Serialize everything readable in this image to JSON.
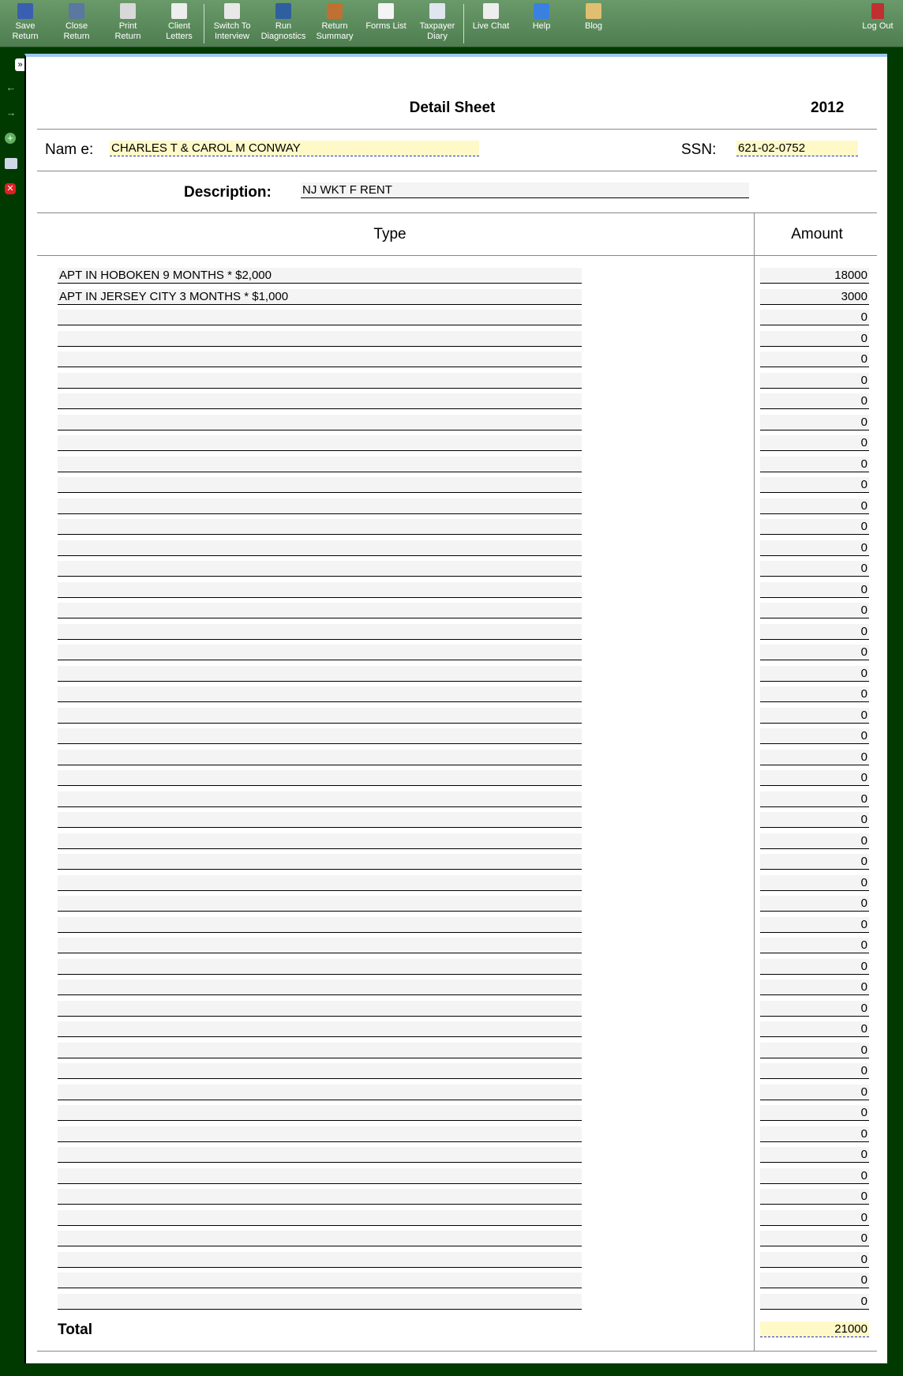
{
  "toolbar": {
    "items": [
      {
        "label1": "Save",
        "label2": "Return",
        "icon": "save-icon",
        "color": "#3a5fb0"
      },
      {
        "label1": "Close",
        "label2": "Return",
        "icon": "close-return-icon",
        "color": "#5a78a0"
      },
      {
        "label1": "Print",
        "label2": "Return",
        "icon": "print-icon",
        "color": "#d8d8d8"
      },
      {
        "label1": "Client",
        "label2": "Letters",
        "icon": "envelope-icon",
        "color": "#eeeeee"
      },
      {
        "label1": "Switch To",
        "label2": "Interview",
        "icon": "interview-icon",
        "color": "#e8e8e8"
      },
      {
        "label1": "Run",
        "label2": "Diagnostics",
        "icon": "diagnostics-icon",
        "color": "#2f5f9f"
      },
      {
        "label1": "Return",
        "label2": "Summary",
        "icon": "clipboard-icon",
        "color": "#c07030"
      },
      {
        "label1": "Forms List",
        "label2": "",
        "icon": "forms-list-icon",
        "color": "#f4f4f4"
      },
      {
        "label1": "Taxpayer",
        "label2": "Diary",
        "icon": "diary-icon",
        "color": "#e0e6f0"
      },
      {
        "label1": "Live Chat",
        "label2": "",
        "icon": "chat-icon",
        "color": "#eeeeee"
      },
      {
        "label1": "Help",
        "label2": "",
        "icon": "help-icon",
        "color": "#3a80e0"
      },
      {
        "label1": "Blog",
        "label2": "",
        "icon": "blog-icon",
        "color": "#e0c070"
      }
    ],
    "logout": "Log Out"
  },
  "sheet": {
    "title": "Detail Sheet",
    "year": "2012",
    "name_label": "Nam e:",
    "name": "CHARLES T & CAROL M CONWAY",
    "ssn_label": "SSN:",
    "ssn": "621-02-0752",
    "desc_label": "Description:",
    "description": "NJ WKT F RENT",
    "col_type": "Type",
    "col_amount": "Amount",
    "total_label": "Total",
    "total": "21000",
    "rows": [
      {
        "type": "APT IN HOBOKEN 9 MONTHS * $2,000",
        "amount": "18000"
      },
      {
        "type": "APT IN JERSEY CITY 3 MONTHS * $1,000",
        "amount": "3000"
      },
      {
        "type": "",
        "amount": "0"
      },
      {
        "type": "",
        "amount": "0"
      },
      {
        "type": "",
        "amount": "0"
      },
      {
        "type": "",
        "amount": "0"
      },
      {
        "type": "",
        "amount": "0"
      },
      {
        "type": "",
        "amount": "0"
      },
      {
        "type": "",
        "amount": "0"
      },
      {
        "type": "",
        "amount": "0"
      },
      {
        "type": "",
        "amount": "0"
      },
      {
        "type": "",
        "amount": "0"
      },
      {
        "type": "",
        "amount": "0"
      },
      {
        "type": "",
        "amount": "0"
      },
      {
        "type": "",
        "amount": "0"
      },
      {
        "type": "",
        "amount": "0"
      },
      {
        "type": "",
        "amount": "0"
      },
      {
        "type": "",
        "amount": "0"
      },
      {
        "type": "",
        "amount": "0"
      },
      {
        "type": "",
        "amount": "0"
      },
      {
        "type": "",
        "amount": "0"
      },
      {
        "type": "",
        "amount": "0"
      },
      {
        "type": "",
        "amount": "0"
      },
      {
        "type": "",
        "amount": "0"
      },
      {
        "type": "",
        "amount": "0"
      },
      {
        "type": "",
        "amount": "0"
      },
      {
        "type": "",
        "amount": "0"
      },
      {
        "type": "",
        "amount": "0"
      },
      {
        "type": "",
        "amount": "0"
      },
      {
        "type": "",
        "amount": "0"
      },
      {
        "type": "",
        "amount": "0"
      },
      {
        "type": "",
        "amount": "0"
      },
      {
        "type": "",
        "amount": "0"
      },
      {
        "type": "",
        "amount": "0"
      },
      {
        "type": "",
        "amount": "0"
      },
      {
        "type": "",
        "amount": "0"
      },
      {
        "type": "",
        "amount": "0"
      },
      {
        "type": "",
        "amount": "0"
      },
      {
        "type": "",
        "amount": "0"
      },
      {
        "type": "",
        "amount": "0"
      },
      {
        "type": "",
        "amount": "0"
      },
      {
        "type": "",
        "amount": "0"
      },
      {
        "type": "",
        "amount": "0"
      },
      {
        "type": "",
        "amount": "0"
      },
      {
        "type": "",
        "amount": "0"
      },
      {
        "type": "",
        "amount": "0"
      },
      {
        "type": "",
        "amount": "0"
      },
      {
        "type": "",
        "amount": "0"
      },
      {
        "type": "",
        "amount": "0"
      },
      {
        "type": "",
        "amount": "0"
      }
    ]
  }
}
